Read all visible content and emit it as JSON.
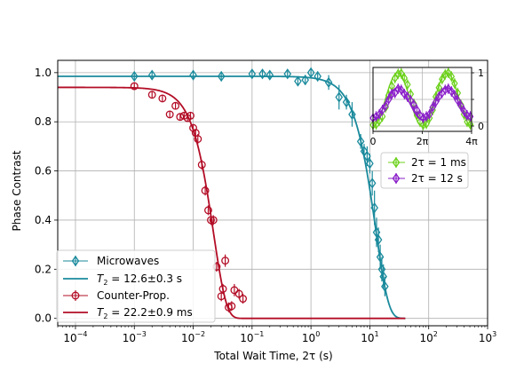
{
  "colors": {
    "microwaves": "#1a8a9c",
    "counter_prop": "#b30d26",
    "inset_1ms": "#6cd11b",
    "inset_12s": "#8a1fc9",
    "grid": "#b0b0b0"
  },
  "chart_data": [
    {
      "type": "scatter",
      "title": "",
      "xlabel": "Total Wait Time, 2τ (s)",
      "ylabel": "Phase Contrast",
      "xscale": "log",
      "xlim": [
        5e-05,
        1000
      ],
      "ylim": [
        -0.03,
        1.05
      ],
      "xticks": [
        {
          "value": 0.0001,
          "base": "10",
          "exp": "−4"
        },
        {
          "value": 0.001,
          "base": "10",
          "exp": "−3"
        },
        {
          "value": 0.01,
          "base": "10",
          "exp": "−2"
        },
        {
          "value": 0.1,
          "base": "10",
          "exp": "−1"
        },
        {
          "value": 1,
          "base": "10",
          "exp": "0"
        },
        {
          "value": 10,
          "base": "10",
          "exp": "1"
        },
        {
          "value": 100,
          "base": "10",
          "exp": "2"
        },
        {
          "value": 1000,
          "base": "10",
          "exp": "3"
        }
      ],
      "yticks": [
        "0.0",
        "0.2",
        "0.4",
        "0.6",
        "0.8",
        "1.0"
      ],
      "ytick_values": [
        0,
        0.2,
        0.4,
        0.6,
        0.8,
        1.0
      ],
      "grid": true,
      "legend_position": "lower-left",
      "series": [
        {
          "name": "Microwaves",
          "kind": "points",
          "marker": "diamond",
          "color_key": "microwaves",
          "x": [
            0.001,
            0.002,
            0.01,
            0.03,
            0.1,
            0.15,
            0.2,
            0.4,
            0.6,
            0.8,
            1.0,
            1.3,
            2.0,
            3.0,
            4.0,
            5.0,
            7.0,
            8.0,
            9.0,
            10.0,
            11.0,
            12.0,
            13.0,
            14.0,
            15.0,
            16.0,
            17.0,
            18.0
          ],
          "y": [
            0.985,
            0.99,
            0.99,
            0.985,
            0.995,
            0.995,
            0.99,
            0.995,
            0.965,
            0.97,
            1.0,
            0.985,
            0.96,
            0.9,
            0.88,
            0.83,
            0.72,
            0.68,
            0.66,
            0.63,
            0.55,
            0.45,
            0.35,
            0.32,
            0.25,
            0.2,
            0.17,
            0.13
          ],
          "err": [
            0.015,
            0.015,
            0.015,
            0.02,
            0.015,
            0.015,
            0.015,
            0.015,
            0.02,
            0.02,
            0.02,
            0.02,
            0.03,
            0.05,
            0.03,
            0.05,
            0.03,
            0.03,
            0.04,
            0.04,
            0.05,
            0.07,
            0.06,
            0.05,
            0.05,
            0.05,
            0.05,
            0.04
          ]
        },
        {
          "name": "T2 = 12.6±0.3 s",
          "label_main": "T",
          "label_sub": "2",
          "label_rest": " = 12.6±0.3 s",
          "kind": "fit",
          "color_key": "microwaves",
          "A": 0.985,
          "T2": 12.6,
          "range": [
            5e-05,
            40
          ]
        },
        {
          "name": "Counter-Prop.",
          "kind": "points",
          "marker": "circle",
          "color_key": "counter_prop",
          "x": [
            0.001,
            0.002,
            0.003,
            0.004,
            0.005,
            0.006,
            0.007,
            0.008,
            0.009,
            0.01,
            0.011,
            0.012,
            0.014,
            0.016,
            0.018,
            0.02,
            0.022,
            0.025,
            0.03,
            0.032,
            0.035,
            0.04,
            0.045,
            0.05,
            0.06,
            0.07
          ],
          "y": [
            0.945,
            0.91,
            0.895,
            0.83,
            0.865,
            0.82,
            0.825,
            0.815,
            0.825,
            0.775,
            0.755,
            0.73,
            0.625,
            0.52,
            0.44,
            0.4,
            0.4,
            0.21,
            0.09,
            0.12,
            0.235,
            0.045,
            0.05,
            0.115,
            0.1,
            0.08
          ],
          "err": [
            0.015,
            0.015,
            0.015,
            0.015,
            0.015,
            0.015,
            0.015,
            0.015,
            0.015,
            0.015,
            0.015,
            0.02,
            0.02,
            0.02,
            0.02,
            0.02,
            0.02,
            0.02,
            0.02,
            0.02,
            0.025,
            0.02,
            0.02,
            0.025,
            0.02,
            0.02
          ]
        },
        {
          "name": "T2 = 22.2±0.9 ms",
          "label_main": "T",
          "label_sub": "2",
          "label_rest": " = 22.2±0.9 ms",
          "kind": "fit",
          "color_key": "counter_prop",
          "A": 0.94,
          "T2": 0.0222,
          "range": [
            5e-05,
            40
          ]
        }
      ]
    },
    {
      "type": "scatter",
      "inset": true,
      "xlabel": "",
      "ylabel": "",
      "xlim": [
        0,
        12.566
      ],
      "ylim": [
        -0.1,
        1.1
      ],
      "xticks": [
        {
          "value": 0,
          "label": "0"
        },
        {
          "value": 6.283,
          "label": "2π"
        },
        {
          "value": 12.566,
          "label": "4π"
        }
      ],
      "yticks": [
        "0",
        "1"
      ],
      "ytick_values": [
        0,
        1
      ],
      "grid": true,
      "series": [
        {
          "name": "2τ = 1 ms",
          "marker": "diamond",
          "color_key": "inset_1ms",
          "amplitude": 0.5,
          "offset": 0.5,
          "phase": 0,
          "x": [
            0.0,
            0.4,
            0.8,
            1.2,
            1.6,
            2.0,
            2.4,
            2.8,
            3.2,
            3.6,
            4.0,
            4.4,
            4.8,
            5.2,
            5.6,
            6.0,
            6.4,
            6.8,
            7.2,
            7.6,
            8.0,
            8.4,
            8.8,
            9.2,
            9.6,
            10.0,
            10.4,
            10.8,
            11.2,
            11.6,
            12.0,
            12.4
          ],
          "y": [
            0.02,
            0.03,
            0.1,
            0.18,
            0.35,
            0.58,
            0.75,
            0.9,
            0.98,
            0.99,
            0.9,
            0.78,
            0.6,
            0.42,
            0.2,
            0.08,
            0.02,
            0.04,
            0.15,
            0.3,
            0.55,
            0.72,
            0.88,
            0.97,
            1.0,
            0.93,
            0.8,
            0.62,
            0.4,
            0.22,
            0.08,
            0.03
          ]
        },
        {
          "name": "2τ = 12 s",
          "marker": "diamond",
          "color_key": "inset_12s",
          "amplitude": 0.3,
          "offset": 0.42,
          "phase": 0,
          "x": [
            0.0,
            0.4,
            0.8,
            1.2,
            1.6,
            2.0,
            2.4,
            2.8,
            3.2,
            3.6,
            4.0,
            4.4,
            4.8,
            5.2,
            5.6,
            6.0,
            6.4,
            6.8,
            7.2,
            7.6,
            8.0,
            8.4,
            8.8,
            9.2,
            9.6,
            10.0,
            10.4,
            10.8,
            11.2,
            11.6,
            12.0,
            12.4
          ],
          "y": [
            0.15,
            0.18,
            0.22,
            0.3,
            0.38,
            0.5,
            0.6,
            0.62,
            0.7,
            0.68,
            0.6,
            0.55,
            0.48,
            0.4,
            0.3,
            0.2,
            0.15,
            0.18,
            0.22,
            0.35,
            0.45,
            0.55,
            0.62,
            0.68,
            0.7,
            0.65,
            0.58,
            0.48,
            0.38,
            0.28,
            0.2,
            0.18
          ]
        }
      ]
    }
  ]
}
